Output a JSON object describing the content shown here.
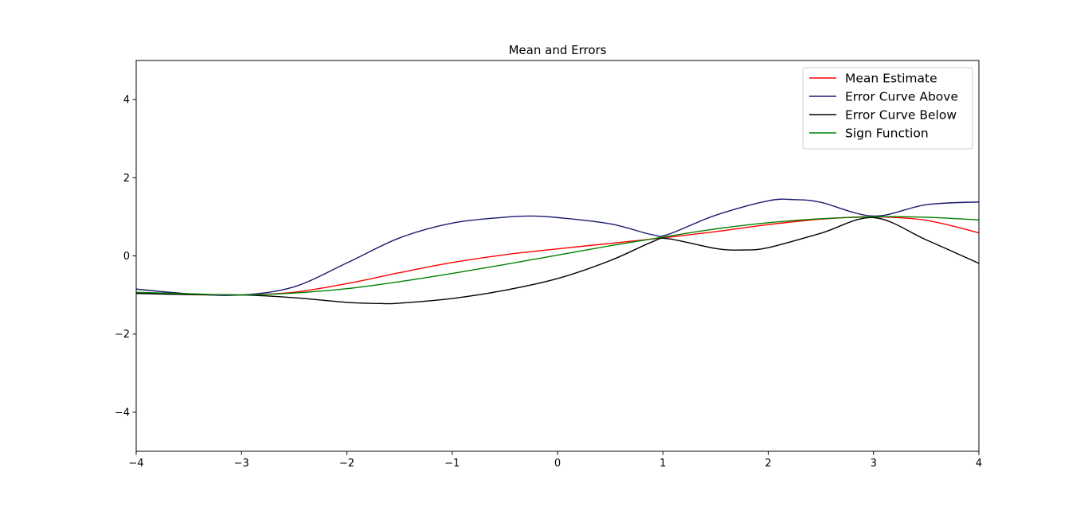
{
  "chart_data": {
    "type": "line",
    "title": "Mean and Errors",
    "xlabel": "",
    "ylabel": "",
    "xlim": [
      -4,
      4
    ],
    "ylim": [
      -5,
      5
    ],
    "grid": false,
    "legend_position": "top-right",
    "x_ticks": [
      -4,
      -3,
      -2,
      -1,
      0,
      1,
      2,
      3,
      4
    ],
    "x_tick_labels": [
      "−4",
      "−3",
      "−2",
      "−1",
      "0",
      "1",
      "2",
      "3",
      "4"
    ],
    "y_ticks": [
      -4,
      -2,
      0,
      2,
      4
    ],
    "y_tick_labels": [
      "−4",
      "−2",
      "0",
      "2",
      "4"
    ],
    "series": [
      {
        "name": "Mean Estimate",
        "color": "#ff0000",
        "x": [
          -4,
          -3.5,
          -3,
          -2.5,
          -2,
          -1.5,
          -1,
          -0.5,
          0,
          0.5,
          1,
          1.5,
          2,
          2.5,
          3,
          3.5,
          4
        ],
        "y": [
          -0.94,
          -0.99,
          -1.0,
          -0.93,
          -0.71,
          -0.43,
          -0.17,
          0.03,
          0.18,
          0.32,
          0.46,
          0.62,
          0.8,
          0.94,
          1.0,
          0.91,
          0.59
        ]
      },
      {
        "name": "Error Curve Above",
        "color": "#191970",
        "x": [
          -4,
          -3.5,
          -3,
          -2.5,
          -2,
          -1.5,
          -1,
          -0.5,
          -0.25,
          0,
          0.5,
          0.9,
          1.05,
          1.5,
          2,
          2.25,
          2.5,
          3,
          3.5,
          4
        ],
        "y": [
          -0.85,
          -0.97,
          -1.0,
          -0.79,
          -0.18,
          0.46,
          0.84,
          0.99,
          1.02,
          0.98,
          0.82,
          0.54,
          0.55,
          1.04,
          1.41,
          1.44,
          1.37,
          1.02,
          1.31,
          1.38
        ]
      },
      {
        "name": "Error Curve Below",
        "color": "#000000",
        "x": [
          -4,
          -3.5,
          -3,
          -2.5,
          -2,
          -1.65,
          -1.5,
          -1,
          -0.5,
          0,
          0.5,
          0.9,
          1.05,
          1.5,
          1.75,
          2,
          2.5,
          3,
          3.5,
          4
        ],
        "y": [
          -0.96,
          -0.99,
          -1.0,
          -1.07,
          -1.19,
          -1.22,
          -1.21,
          -1.09,
          -0.88,
          -0.58,
          -0.12,
          0.36,
          0.44,
          0.19,
          0.15,
          0.21,
          0.58,
          0.98,
          0.41,
          -0.19
        ]
      },
      {
        "name": "Sign Function",
        "color": "#008000",
        "x": [
          -4,
          -3.5,
          -3,
          -2.5,
          -2,
          -1.5,
          -1,
          -0.5,
          0,
          0.5,
          1,
          1.5,
          2,
          2.5,
          3,
          3.5,
          4
        ],
        "y": [
          -0.93,
          -0.97,
          -1.0,
          -0.95,
          -0.84,
          -0.66,
          -0.45,
          -0.22,
          0.02,
          0.26,
          0.48,
          0.69,
          0.85,
          0.95,
          1.0,
          0.99,
          0.92
        ]
      }
    ]
  }
}
